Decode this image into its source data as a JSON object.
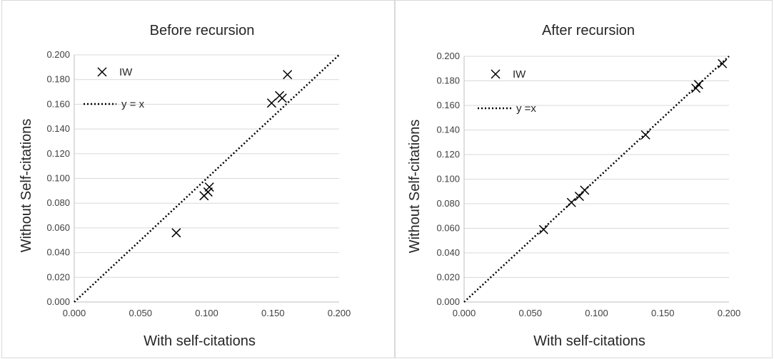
{
  "chart_data": [
    {
      "type": "scatter",
      "title": "Before recursion",
      "xlabel": "With self-citations",
      "ylabel": "Without Self-citations",
      "xlim": [
        0,
        0.2
      ],
      "ylim": [
        0,
        0.2
      ],
      "x_ticks": [
        "0.000",
        "0.050",
        "0.100",
        "0.150",
        "0.200"
      ],
      "y_ticks": [
        "0.000",
        "0.020",
        "0.040",
        "0.060",
        "0.080",
        "0.100",
        "0.120",
        "0.140",
        "0.160",
        "0.180",
        "0.200"
      ],
      "grid": "horizontal",
      "legend": {
        "placement": "top-left",
        "entries": [
          "IW",
          "y = x"
        ]
      },
      "series": [
        {
          "name": "IW",
          "marker": "x",
          "color": "#000000",
          "points": [
            [
              0.077,
              0.056
            ],
            [
              0.098,
              0.086
            ],
            [
              0.101,
              0.089
            ],
            [
              0.102,
              0.093
            ],
            [
              0.149,
              0.161
            ],
            [
              0.155,
              0.167
            ],
            [
              0.157,
              0.165
            ],
            [
              0.161,
              0.184
            ]
          ]
        },
        {
          "name": "y = x",
          "style": "dotted",
          "color": "#000000",
          "points": [
            [
              0,
              0
            ],
            [
              0.2,
              0.2
            ]
          ]
        }
      ]
    },
    {
      "type": "scatter",
      "title": "After recursion",
      "xlabel": "With self-citations",
      "ylabel": "Without Self-citations",
      "xlim": [
        0,
        0.2
      ],
      "ylim": [
        0,
        0.2
      ],
      "x_ticks": [
        "0.000",
        "0.050",
        "0.100",
        "0.150",
        "0.200"
      ],
      "y_ticks": [
        "0.000",
        "0.020",
        "0.040",
        "0.060",
        "0.080",
        "0.100",
        "0.120",
        "0.140",
        "0.160",
        "0.180",
        "0.200"
      ],
      "grid": "horizontal",
      "legend": {
        "placement": "top-left",
        "entries": [
          "IW",
          "y =x"
        ]
      },
      "series": [
        {
          "name": "IW",
          "marker": "x",
          "color": "#000000",
          "points": [
            [
              0.06,
              0.059
            ],
            [
              0.081,
              0.081
            ],
            [
              0.087,
              0.086
            ],
            [
              0.091,
              0.091
            ],
            [
              0.137,
              0.136
            ],
            [
              0.175,
              0.174
            ],
            [
              0.177,
              0.177
            ],
            [
              0.195,
              0.194
            ]
          ]
        },
        {
          "name": "y =x",
          "style": "dotted",
          "color": "#000000",
          "points": [
            [
              0,
              0
            ],
            [
              0.2,
              0.2
            ]
          ]
        }
      ]
    }
  ]
}
